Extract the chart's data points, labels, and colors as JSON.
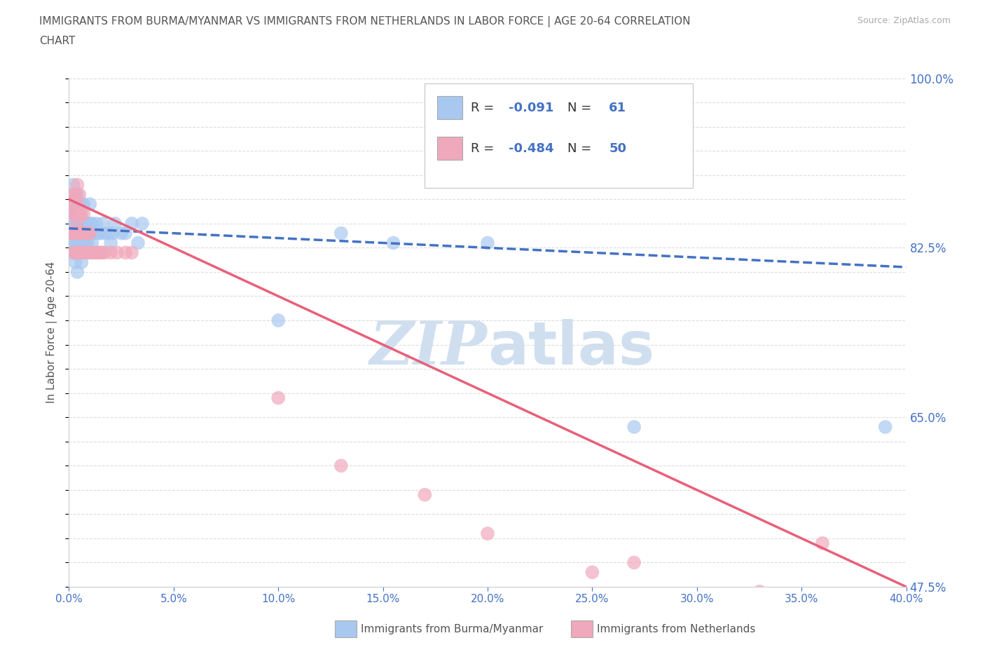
{
  "title_line1": "IMMIGRANTS FROM BURMA/MYANMAR VS IMMIGRANTS FROM NETHERLANDS IN LABOR FORCE | AGE 20-64 CORRELATION",
  "title_line2": "CHART",
  "source_text": "Source: ZipAtlas.com",
  "ylabel": "In Labor Force | Age 20-64",
  "legend_label1": "Immigrants from Burma/Myanmar",
  "legend_label2": "Immigrants from Netherlands",
  "R1": "-0.091",
  "N1": "61",
  "R2": "-0.484",
  "N2": "50",
  "color_blue": "#a8c8f0",
  "color_pink": "#f0a8bc",
  "color_blue_line": "#4472c4",
  "color_pink_line": "#e8607a",
  "watermark_color": "#d0dff0",
  "title_color": "#555555",
  "axis_label_color": "#4472c4",
  "xmin": 0.0,
  "xmax": 0.4,
  "ymin": 0.475,
  "ymax": 1.0,
  "yticks": [
    0.475,
    0.65,
    0.825,
    1.0
  ],
  "ytick_labels": [
    "47.5%",
    "65.0%",
    "82.5%",
    "100.0%"
  ],
  "scatter_blue_x": [
    0.001,
    0.001,
    0.001,
    0.002,
    0.002,
    0.002,
    0.002,
    0.002,
    0.003,
    0.003,
    0.003,
    0.003,
    0.003,
    0.004,
    0.004,
    0.004,
    0.004,
    0.004,
    0.004,
    0.005,
    0.005,
    0.005,
    0.005,
    0.006,
    0.006,
    0.006,
    0.006,
    0.007,
    0.007,
    0.007,
    0.007,
    0.008,
    0.008,
    0.009,
    0.009,
    0.01,
    0.01,
    0.01,
    0.011,
    0.011,
    0.012,
    0.013,
    0.014,
    0.015,
    0.016,
    0.017,
    0.019,
    0.02,
    0.021,
    0.022,
    0.025,
    0.027,
    0.03,
    0.033,
    0.035,
    0.1,
    0.13,
    0.155,
    0.2,
    0.27,
    0.39
  ],
  "scatter_blue_y": [
    0.83,
    0.85,
    0.87,
    0.82,
    0.84,
    0.85,
    0.87,
    0.89,
    0.81,
    0.83,
    0.84,
    0.86,
    0.88,
    0.8,
    0.82,
    0.83,
    0.85,
    0.86,
    0.88,
    0.82,
    0.83,
    0.85,
    0.87,
    0.81,
    0.83,
    0.85,
    0.87,
    0.82,
    0.83,
    0.85,
    0.87,
    0.83,
    0.85,
    0.83,
    0.85,
    0.84,
    0.85,
    0.87,
    0.83,
    0.85,
    0.84,
    0.85,
    0.84,
    0.84,
    0.85,
    0.84,
    0.84,
    0.83,
    0.84,
    0.85,
    0.84,
    0.84,
    0.85,
    0.83,
    0.85,
    0.75,
    0.84,
    0.83,
    0.83,
    0.64,
    0.64
  ],
  "scatter_pink_x": [
    0.001,
    0.001,
    0.002,
    0.002,
    0.002,
    0.002,
    0.003,
    0.003,
    0.003,
    0.003,
    0.004,
    0.004,
    0.004,
    0.004,
    0.004,
    0.005,
    0.005,
    0.005,
    0.005,
    0.006,
    0.006,
    0.006,
    0.007,
    0.007,
    0.007,
    0.008,
    0.008,
    0.009,
    0.009,
    0.01,
    0.01,
    0.011,
    0.012,
    0.013,
    0.014,
    0.015,
    0.016,
    0.017,
    0.02,
    0.023,
    0.027,
    0.03,
    0.1,
    0.13,
    0.17,
    0.2,
    0.25,
    0.27,
    0.33,
    0.36
  ],
  "scatter_pink_y": [
    0.84,
    0.87,
    0.82,
    0.84,
    0.86,
    0.88,
    0.82,
    0.84,
    0.86,
    0.88,
    0.82,
    0.84,
    0.85,
    0.87,
    0.89,
    0.82,
    0.84,
    0.86,
    0.88,
    0.82,
    0.84,
    0.86,
    0.82,
    0.84,
    0.86,
    0.82,
    0.84,
    0.82,
    0.84,
    0.82,
    0.84,
    0.82,
    0.82,
    0.82,
    0.82,
    0.82,
    0.82,
    0.82,
    0.82,
    0.82,
    0.82,
    0.82,
    0.67,
    0.6,
    0.57,
    0.53,
    0.49,
    0.5,
    0.47,
    0.52
  ],
  "blue_line_x": [
    0.0,
    0.4
  ],
  "blue_line_y": [
    0.845,
    0.805
  ],
  "pink_line_x": [
    0.0,
    0.4
  ],
  "pink_line_y": [
    0.875,
    0.475
  ]
}
